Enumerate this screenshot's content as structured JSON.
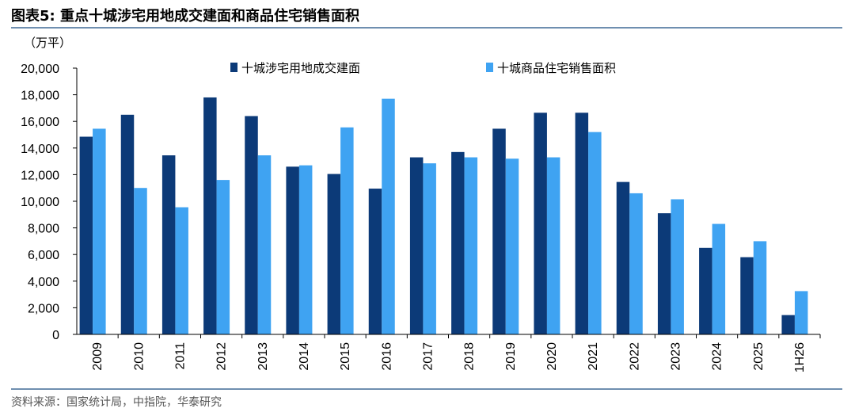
{
  "header": {
    "title": "图表5:  重点十城涉宅用地成交建面和商品住宅销售面积"
  },
  "footer": {
    "source": "资料来源：国家统计局，中指院，华泰研究"
  },
  "colors": {
    "series1": "#0c3a78",
    "series2": "#3fa3f2",
    "rule": "#6f8fb0"
  },
  "chart_data": {
    "type": "bar",
    "unit_label": "（万平）",
    "categories": [
      "2009",
      "2010",
      "2011",
      "2012",
      "2013",
      "2014",
      "2015",
      "2016",
      "2017",
      "2018",
      "2019",
      "2020",
      "2021",
      "2022",
      "2023",
      "2024",
      "2025",
      "1H26"
    ],
    "series": [
      {
        "name": "十城涉宅用地成交建面",
        "values": [
          14850,
          16500,
          13450,
          17800,
          16400,
          12600,
          12050,
          10950,
          13300,
          13700,
          15450,
          16650,
          16650,
          11450,
          9100,
          6500,
          5800,
          1450
        ]
      },
      {
        "name": "十城商品住宅销售面积",
        "values": [
          15450,
          11000,
          9550,
          11600,
          13450,
          12700,
          15550,
          17700,
          12850,
          13300,
          13200,
          13300,
          15200,
          10600,
          10150,
          8300,
          7000,
          3250
        ]
      }
    ],
    "y_ticks": [
      "0",
      "2,000",
      "4,000",
      "6,000",
      "8,000",
      "10,000",
      "12,000",
      "14,000",
      "16,000",
      "18,000",
      "20,000"
    ],
    "ylim": [
      0,
      20000
    ],
    "legend_position": "top",
    "grid": false
  }
}
